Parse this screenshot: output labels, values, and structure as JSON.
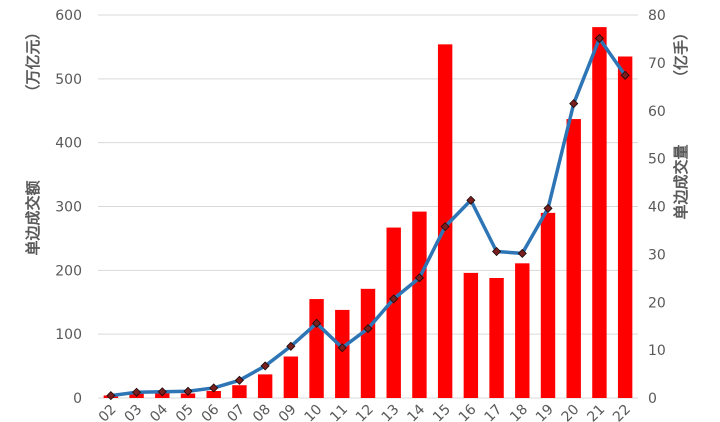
{
  "chart_data": {
    "type": "bar",
    "title": "",
    "categories": [
      "2002",
      "2003",
      "2004",
      "2005",
      "2006",
      "2007",
      "2008",
      "2009",
      "2010",
      "2011",
      "2012",
      "2013",
      "2014",
      "2015",
      "2016",
      "2017",
      "2018",
      "2019",
      "2020",
      "2021",
      "2022"
    ],
    "x_tick_labels": [
      "02",
      "03",
      "04",
      "05",
      "06",
      "07",
      "08",
      "09",
      "10",
      "11",
      "12",
      "13",
      "14",
      "15",
      "16",
      "17",
      "18",
      "19",
      "20",
      "21",
      "22"
    ],
    "series": [
      {
        "type": "bar",
        "axis": "left",
        "color": "#ff0000",
        "values": [
          4,
          7,
          8,
          7,
          11,
          20,
          37,
          65,
          155,
          138,
          171,
          267,
          292,
          554,
          196,
          188,
          211,
          290,
          437,
          581,
          535
        ]
      },
      {
        "type": "line",
        "axis": "right",
        "color": "#2e75b6",
        "marker_color": "#7a1f1f",
        "values": [
          0.5,
          1.2,
          1.3,
          1.4,
          2.1,
          3.7,
          6.7,
          10.8,
          15.6,
          10.5,
          14.5,
          20.7,
          25.1,
          35.8,
          41.3,
          30.6,
          30.2,
          39.6,
          61.5,
          75.1,
          67.4
        ]
      }
    ],
    "yaxis_left": {
      "ticks": [
        "0",
        "100",
        "200",
        "300",
        "400",
        "500",
        "600"
      ],
      "range": [
        0,
        600
      ],
      "label": "单边成交额",
      "unit": "（万亿元）"
    },
    "yaxis_right": {
      "ticks": [
        "0",
        "10",
        "20",
        "30",
        "40",
        "50",
        "60",
        "70",
        "80"
      ],
      "range": [
        0,
        80
      ],
      "label": "单边成交量",
      "unit": "（亿手）"
    },
    "grid": true,
    "legend": "none"
  }
}
